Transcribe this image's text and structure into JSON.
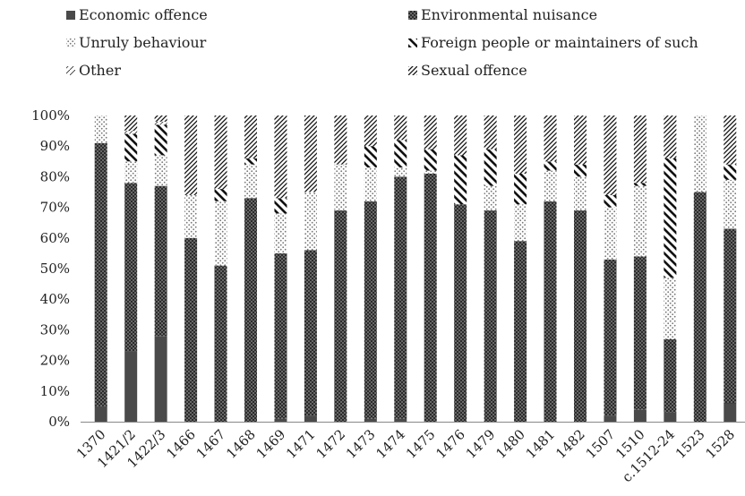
{
  "chart_data": {
    "type": "bar",
    "stacked": "percent",
    "title": "",
    "xlabel": "",
    "ylabel": "",
    "ylim": [
      0,
      100
    ],
    "y_ticks": [
      "0%",
      "10%",
      "20%",
      "30%",
      "40%",
      "50%",
      "60%",
      "70%",
      "80%",
      "90%",
      "100%"
    ],
    "grid": false,
    "legend_position": "top",
    "categories": [
      "1370",
      "1421/2",
      "1422/3",
      "1466",
      "1467",
      "1468",
      "1469",
      "1471",
      "1472",
      "1473",
      "1474",
      "1475",
      "1476",
      "1479",
      "1480",
      "1481",
      "1482",
      "1507",
      "1510",
      "c.1512-24",
      "1523",
      "1528"
    ],
    "series": [
      {
        "name": "Economic offence",
        "pattern": "solid-dark",
        "values": [
          5,
          23,
          28,
          0,
          0,
          0,
          1,
          2,
          0,
          1,
          1,
          0,
          0,
          0,
          0,
          0,
          0,
          2,
          4,
          3,
          0,
          6
        ]
      },
      {
        "name": "Environmental nuisance",
        "pattern": "dense-dots",
        "values": [
          86,
          55,
          49,
          60,
          51,
          73,
          54,
          54,
          69,
          71,
          79,
          81,
          71,
          69,
          59,
          72,
          69,
          51,
          50,
          24,
          75,
          57
        ]
      },
      {
        "name": "Unruly behaviour",
        "pattern": "light-dots",
        "values": [
          9,
          7,
          10,
          14,
          21,
          11,
          13,
          19,
          15,
          11,
          3,
          1,
          0,
          8,
          12,
          10,
          11,
          17,
          23,
          20,
          25,
          16
        ]
      },
      {
        "name": "Foreign people or maintainers of such",
        "pattern": "backslash",
        "values": [
          0,
          9,
          10,
          0,
          4,
          2,
          5,
          0,
          0,
          7,
          9,
          7,
          16,
          12,
          10,
          3,
          4,
          4,
          1,
          39,
          0,
          5
        ]
      },
      {
        "name": "Other",
        "pattern": "arrow",
        "values": [
          0,
          1,
          1,
          0,
          0,
          0,
          0,
          0,
          0,
          0,
          0,
          0,
          0,
          0,
          0,
          0,
          0,
          0,
          0,
          0,
          0,
          0
        ]
      },
      {
        "name": "Sexual offence",
        "pattern": "slash",
        "values": [
          0,
          5,
          2,
          26,
          24,
          14,
          27,
          25,
          16,
          10,
          8,
          11,
          13,
          11,
          19,
          15,
          16,
          26,
          22,
          14,
          0,
          16
        ]
      }
    ]
  },
  "colors": {
    "dark": "#333333",
    "medium": "#555555",
    "light": "#999999"
  }
}
